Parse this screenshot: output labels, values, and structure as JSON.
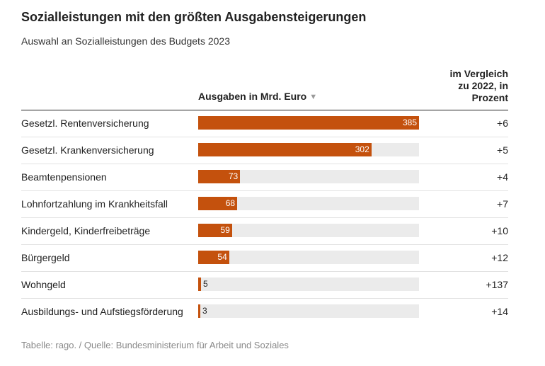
{
  "header": {
    "title": "Sozialleistungen mit den größten Ausgabensteigerungen",
    "subtitle": "Auswahl an Sozialleistungen des Budgets 2023"
  },
  "columns": {
    "bar_header": "Ausgaben in Mrd. Euro",
    "sort_icon": "▼",
    "change_header_lines": [
      "im Vergleich",
      "zu 2022, in",
      "Prozent"
    ]
  },
  "footer": {
    "source": "Tabelle: rago. / Quelle: Bundesministerium für Arbeit und Soziales"
  },
  "colors": {
    "bar": "#c4510d",
    "track": "#ebebeb"
  },
  "icons": {
    "sort": "sort-descending-icon"
  },
  "chart_data": {
    "type": "bar",
    "orientation": "horizontal",
    "title": "Sozialleistungen mit den größten Ausgabensteigerungen",
    "subtitle": "Auswahl an Sozialleistungen des Budgets 2023",
    "xlabel": "Ausgaben in Mrd. Euro",
    "xlim": [
      0,
      385
    ],
    "grid": false,
    "categories": [
      "Gesetzl. Rentenversicherung",
      "Gesetzl. Krankenversicherung",
      "Beamtenpensionen",
      "Lohnfortzahlung im Krankheitsfall",
      "Kindergeld, Kinderfreibeträge",
      "Bürgergeld",
      "Wohngeld",
      "Ausbildungs- und Aufstiegsförderung"
    ],
    "values": [
      385,
      302,
      73,
      68,
      59,
      54,
      5,
      3
    ],
    "changes": [
      "+6",
      "+5",
      "+4",
      "+7",
      "+10",
      "+12",
      "+137",
      "+14"
    ]
  }
}
